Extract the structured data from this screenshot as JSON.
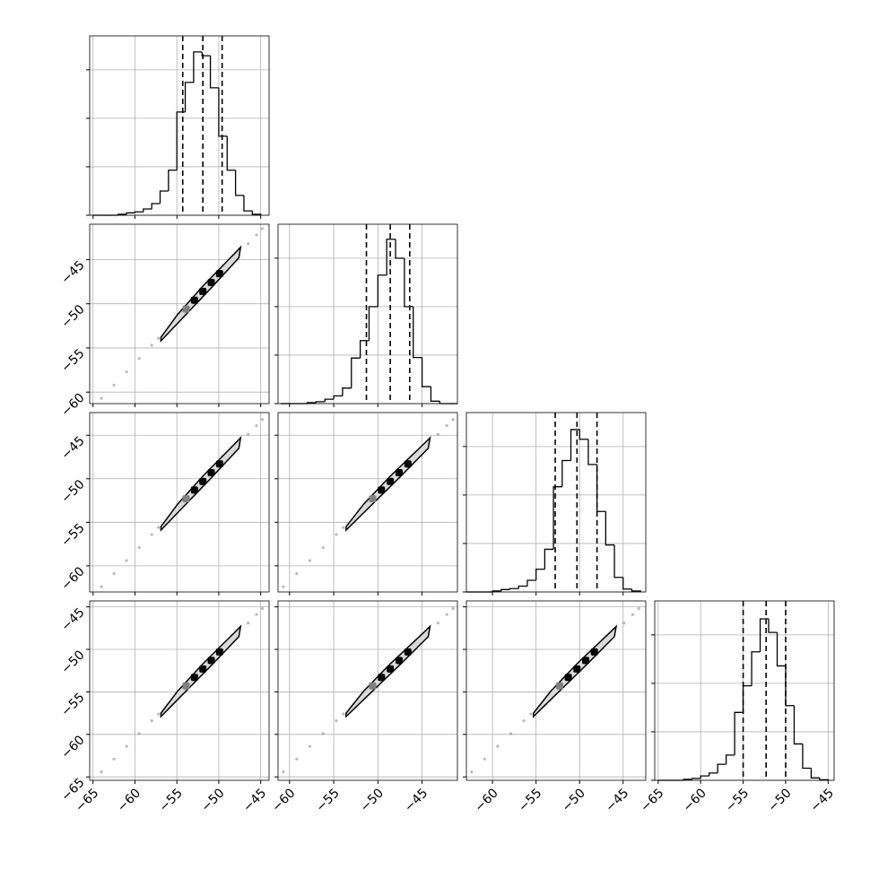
{
  "chart_data": {
    "type": "corner",
    "grid": true,
    "color": "#000000",
    "scatter_color": "#8c8c8c",
    "fill_color": "#d9d9d9",
    "level_colors": [
      "#808080",
      "#000000"
    ],
    "params": [
      {
        "range": [
          -65.4,
          -44.0
        ],
        "ticks": [
          {
            "value": -65,
            "label": "−65"
          },
          {
            "value": -60,
            "label": "−60"
          },
          {
            "value": -55,
            "label": "−55"
          },
          {
            "value": -50,
            "label": "−50"
          },
          {
            "value": -45,
            "label": "−45"
          }
        ],
        "quantiles": [
          -54.3,
          -51.9,
          -49.6
        ],
        "hist": {
          "bins": [
            -65,
            -64,
            -63,
            -62,
            -61,
            -60,
            -59,
            -58,
            -57,
            -56,
            -55,
            -54,
            -53,
            -52,
            -51,
            -50,
            -49,
            -48,
            -47,
            -46,
            -45
          ],
          "counts": [
            0,
            0,
            0,
            20,
            50,
            70,
            130,
            240,
            500,
            930,
            2130,
            2740,
            3370,
            3290,
            2630,
            1630,
            930,
            410,
            90,
            20
          ],
          "ylim": [
            0,
            3700
          ],
          "yticks": [
            0,
            1000,
            2000,
            3000
          ]
        }
      },
      {
        "range": [
          -61.3,
          -41.0
        ],
        "ticks": [
          {
            "value": -60,
            "label": "−60"
          },
          {
            "value": -55,
            "label": "−55"
          },
          {
            "value": -50,
            "label": "−50"
          },
          {
            "value": -45,
            "label": "−45"
          }
        ],
        "quantiles": [
          -51.3,
          -48.6,
          -46.4
        ],
        "hist": {
          "bins": [
            -61,
            -60,
            -59,
            -58,
            -57,
            -56,
            -55,
            -54,
            -53,
            -52,
            -51,
            -50,
            -49,
            -48,
            -47,
            -46,
            -45,
            -44,
            -43,
            -42,
            -41
          ],
          "counts": [
            0,
            0,
            0,
            20,
            40,
            90,
            160,
            320,
            940,
            1300,
            2000,
            2650,
            3390,
            3000,
            2000,
            950,
            350,
            50,
            0,
            0
          ],
          "ylim": [
            0,
            3700
          ],
          "yticks": [
            0,
            1000,
            2000,
            3000
          ]
        }
      },
      {
        "range": [
          -63.0,
          -42.4
        ],
        "ticks": [
          {
            "value": -60,
            "label": "−60"
          },
          {
            "value": -55,
            "label": "−55"
          },
          {
            "value": -50,
            "label": "−50"
          },
          {
            "value": -45,
            "label": "−45"
          }
        ],
        "quantiles": [
          -52.8,
          -50.3,
          -48.0
        ],
        "hist": {
          "bins": [
            -63,
            -62,
            -61,
            -60,
            -59,
            -58,
            -57,
            -56,
            -55,
            -54,
            -53,
            -52,
            -51,
            -50,
            -49,
            -48,
            -47,
            -46,
            -45,
            -44,
            -43
          ],
          "counts": [
            0,
            0,
            0,
            20,
            50,
            70,
            120,
            240,
            470,
            880,
            2170,
            2710,
            3350,
            3150,
            2630,
            1660,
            970,
            300,
            60,
            20
          ],
          "ylim": [
            0,
            3700
          ],
          "yticks": [
            0,
            1000,
            2000,
            3000
          ]
        }
      },
      {
        "range": [
          -65.4,
          -44.3
        ],
        "ticks": [
          {
            "value": -65,
            "label": "−65"
          },
          {
            "value": -60,
            "label": "−60"
          },
          {
            "value": -55,
            "label": "−55"
          },
          {
            "value": -50,
            "label": "−50"
          },
          {
            "value": -45,
            "label": "−45"
          }
        ],
        "quantiles": [
          -55.0,
          -52.3,
          -50.0
        ],
        "hist": {
          "bins": [
            -65,
            -64,
            -63,
            -62,
            -61,
            -60,
            -59,
            -58,
            -57,
            -56,
            -55,
            -54,
            -53,
            -52,
            -51,
            -50,
            -49,
            -48,
            -47,
            -46,
            -45
          ],
          "counts": [
            0,
            0,
            0,
            20,
            40,
            90,
            150,
            330,
            520,
            1400,
            1950,
            2650,
            3330,
            3050,
            2360,
            1540,
            750,
            250,
            50,
            10
          ],
          "ylim": [
            0,
            3700
          ],
          "yticks": [
            0,
            1000,
            2000,
            3000
          ]
        }
      }
    ],
    "pairs": [
      {
        "scatter": {
          "x": [
            -64,
            -62.5,
            -61,
            -59.5,
            -58,
            -57.2,
            -46.5,
            -45.5,
            -44.8
          ],
          "y": [
            -60.7,
            -59.2,
            -57.7,
            -56.2,
            -54.7,
            -53.9,
            -43.2,
            -42.2,
            -41.5
          ]
        },
        "contour": {
          "x": [
            -56.9,
            -54.9,
            -51.9,
            -47.9,
            -47.4,
            -47.6,
            -50.9,
            -54.9,
            -56.9
          ],
          "y": [
            -53.8,
            -51.2,
            -48.0,
            -44.1,
            -43.6,
            -44.8,
            -48.2,
            -52.2,
            -54.2
          ]
        },
        "levels": {
          "x": [
            -53.9,
            -52.9,
            -51.9,
            -50.9,
            -49.9
          ],
          "y": [
            -50.6,
            -49.6,
            -48.6,
            -47.6,
            -46.6
          ]
        }
      },
      {
        "scatter": {
          "x": [
            -64,
            -62.5,
            -61,
            -59.5,
            -58,
            -57.2,
            -46.5,
            -45.5,
            -44.8
          ],
          "y": [
            -62.4,
            -60.9,
            -59.4,
            -57.9,
            -56.4,
            -55.6,
            -44.9,
            -43.9,
            -43.2
          ]
        },
        "contour": {
          "x": [
            -56.9,
            -54.9,
            -51.9,
            -47.9,
            -47.4,
            -47.6,
            -50.9,
            -54.9,
            -56.9
          ],
          "y": [
            -55.5,
            -52.9,
            -49.7,
            -45.8,
            -45.3,
            -46.5,
            -49.9,
            -53.9,
            -55.9
          ]
        },
        "levels": {
          "x": [
            -53.9,
            -52.9,
            -51.9,
            -50.9,
            -49.9
          ],
          "y": [
            -52.3,
            -51.3,
            -50.3,
            -49.3,
            -48.3
          ]
        }
      },
      {
        "scatter": {
          "x": [
            -60.7,
            -59.2,
            -57.7,
            -56.2,
            -54.7,
            -53.9,
            -43.2,
            -42.2,
            -41.5
          ],
          "y": [
            -62.4,
            -60.9,
            -59.4,
            -57.9,
            -56.4,
            -55.6,
            -44.9,
            -43.9,
            -43.2
          ]
        },
        "contour": {
          "x": [
            -53.6,
            -51.6,
            -48.6,
            -44.6,
            -44.1,
            -44.3,
            -47.6,
            -51.6,
            -53.6
          ],
          "y": [
            -55.5,
            -52.9,
            -49.7,
            -45.8,
            -45.3,
            -46.5,
            -49.9,
            -53.9,
            -55.9
          ]
        },
        "levels": {
          "x": [
            -50.6,
            -49.6,
            -48.6,
            -47.6,
            -46.6
          ],
          "y": [
            -52.3,
            -51.3,
            -50.3,
            -49.3,
            -48.3
          ]
        }
      },
      {
        "scatter": {
          "x": [
            -64,
            -62.5,
            -61,
            -59.5,
            -58,
            -57.2,
            -46.5,
            -45.5,
            -44.8
          ],
          "y": [
            -64.4,
            -62.9,
            -61.4,
            -59.9,
            -58.4,
            -57.6,
            -46.9,
            -45.9,
            -45.2
          ]
        },
        "contour": {
          "x": [
            -56.9,
            -54.9,
            -51.9,
            -47.9,
            -47.4,
            -47.6,
            -50.9,
            -54.9,
            -56.9
          ],
          "y": [
            -57.5,
            -54.9,
            -51.7,
            -47.8,
            -47.3,
            -48.5,
            -51.9,
            -55.9,
            -57.9
          ]
        },
        "levels": {
          "x": [
            -53.9,
            -52.9,
            -51.9,
            -50.9,
            -49.9
          ],
          "y": [
            -54.3,
            -53.3,
            -52.3,
            -51.3,
            -50.3
          ]
        }
      },
      {
        "scatter": {
          "x": [
            -60.7,
            -59.2,
            -57.7,
            -56.2,
            -54.7,
            -53.9,
            -43.2,
            -42.2,
            -41.5
          ],
          "y": [
            -64.4,
            -62.9,
            -61.4,
            -59.9,
            -58.4,
            -57.6,
            -46.9,
            -45.9,
            -45.2
          ]
        },
        "contour": {
          "x": [
            -53.6,
            -51.6,
            -48.6,
            -44.6,
            -44.1,
            -44.3,
            -47.6,
            -51.6,
            -53.6
          ],
          "y": [
            -57.5,
            -54.9,
            -51.7,
            -47.8,
            -47.3,
            -48.5,
            -51.9,
            -55.9,
            -57.9
          ]
        },
        "levels": {
          "x": [
            -50.6,
            -49.6,
            -48.6,
            -47.6,
            -46.6
          ],
          "y": [
            -54.3,
            -53.3,
            -52.3,
            -51.3,
            -50.3
          ]
        }
      },
      {
        "scatter": {
          "x": [
            -62.4,
            -60.9,
            -59.4,
            -57.9,
            -56.4,
            -55.6,
            -44.9,
            -43.9,
            -43.2
          ],
          "y": [
            -64.4,
            -62.9,
            -61.4,
            -59.9,
            -58.4,
            -57.6,
            -46.9,
            -45.9,
            -45.2
          ]
        },
        "contour": {
          "x": [
            -55.3,
            -53.3,
            -50.3,
            -46.3,
            -45.8,
            -46.0,
            -49.3,
            -53.3,
            -55.3
          ],
          "y": [
            -57.5,
            -54.9,
            -51.7,
            -47.8,
            -47.3,
            -48.5,
            -51.9,
            -55.9,
            -57.9
          ]
        },
        "levels": {
          "x": [
            -52.3,
            -51.3,
            -50.3,
            -49.3,
            -48.3
          ],
          "y": [
            -54.3,
            -53.3,
            -52.3,
            -51.3,
            -50.3
          ]
        }
      }
    ]
  }
}
